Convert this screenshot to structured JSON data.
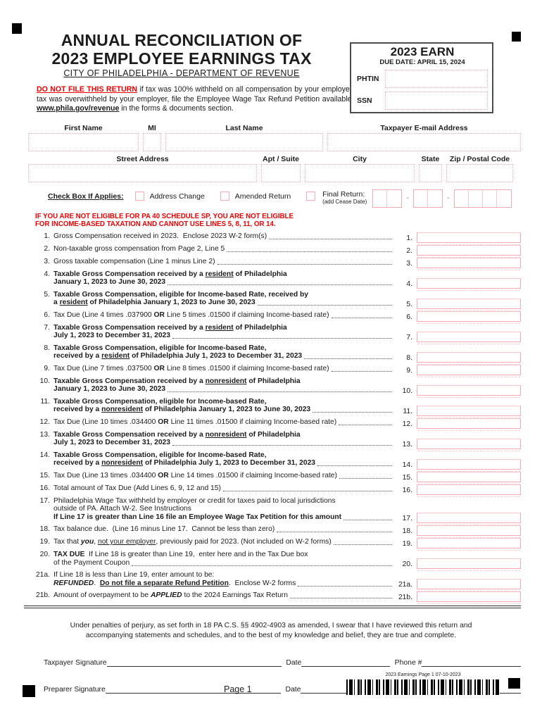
{
  "colors": {
    "field_pink": "#f5a9b4",
    "warning_red": "#ee0000"
  },
  "header": {
    "title_line1": "ANNUAL RECONCILIATION OF",
    "title_line2": "2023 EMPLOYEE EARNINGS TAX",
    "subtitle": "CITY OF PHILADELPHIA - DEPARTMENT OF REVENUE",
    "warning_bold": "DO NOT FILE THIS RETURN",
    "warning_mid": " if tax was 100% withheld on all compensation by your employer. If tax was overwithheld by your employer, file the Employee Wage Tax Refund Petition available at ",
    "warning_link": "www.phila.gov/revenue",
    "warning_end": " in the forms & documents section."
  },
  "earn_box": {
    "title": "2023 EARN",
    "due": "DUE DATE:  APRIL 15, 2024",
    "phtin_label": "PHTIN",
    "ssn_label": "SSN"
  },
  "identity": {
    "first_name": "First Name",
    "mi": "MI",
    "last_name": "Last Name",
    "email": "Taxpayer E-mail Address",
    "street": "Street Address",
    "apt": "Apt / Suite",
    "city": "City",
    "state": "State",
    "zip": "Zip / Postal Code"
  },
  "checkbox_row": {
    "label": "Check Box If Applies:",
    "address_change": "Address Change",
    "amended_return": "Amended Return",
    "final_return": "Final Return:",
    "add_cease_date": "(add Cease Date)",
    "dash": "-"
  },
  "eligibility_warning": {
    "line1": "IF YOU ARE NOT ELIGIBLE FOR PA 40 SCHEDULE SP, YOU ARE NOT ELIGIBLE",
    "line2": "FOR INCOME-BASED TAXATION AND CANNOT USE LINES 5, 8, 11, OR 14."
  },
  "lines": [
    {
      "n": "1.",
      "rows": [
        [
          {
            "t": "Gross Compensation received in 2023.  Enclose 2023 W-2 form(s)"
          }
        ]
      ]
    },
    {
      "n": "2.",
      "rows": [
        [
          {
            "t": "Non-taxable gross compensation from Page 2, Line 5"
          }
        ]
      ]
    },
    {
      "n": "3.",
      "rows": [
        [
          {
            "t": "Gross taxable compensation (Line 1 minus Line 2)"
          }
        ]
      ]
    },
    {
      "n": "4.",
      "rows": [
        [
          {
            "t": "Taxable Gross Compensation received by a ",
            "b": 1
          },
          {
            "t": "resident",
            "b": 1,
            "u": 1
          },
          {
            "t": " of Philadelphia",
            "b": 1
          }
        ],
        [
          {
            "t": "January 1, 2023 to June 30, 2023",
            "b": 1
          }
        ]
      ]
    },
    {
      "n": "5.",
      "rows": [
        [
          {
            "t": "Taxable Gross Compensation, eligible for Income-based Rate, received by",
            "b": 1
          }
        ],
        [
          {
            "t": "a ",
            "b": 1
          },
          {
            "t": "resident",
            "b": 1,
            "u": 1
          },
          {
            "t": " of Philadelphia January 1, 2023 to June 30, 2023",
            "b": 1
          }
        ]
      ]
    },
    {
      "n": "6.",
      "rows": [
        [
          {
            "t": "Tax Due (Line 4 times .037900 "
          },
          {
            "t": "OR",
            "b": 1
          },
          {
            "t": " Line 5 times .01500 if claiming Income-based rate)"
          }
        ]
      ]
    },
    {
      "n": "7.",
      "rows": [
        [
          {
            "t": "Taxable Gross Compensation received by a ",
            "b": 1
          },
          {
            "t": "resident",
            "b": 1,
            "u": 1
          },
          {
            "t": " of Philadelphia",
            "b": 1
          }
        ],
        [
          {
            "t": "July 1, 2023 to December 31, 2023",
            "b": 1
          }
        ]
      ]
    },
    {
      "n": "8.",
      "rows": [
        [
          {
            "t": "Taxable Gross Compensation, eligible for Income-based Rate,",
            "b": 1
          }
        ],
        [
          {
            "t": "received by a ",
            "b": 1
          },
          {
            "t": "resident",
            "b": 1,
            "u": 1
          },
          {
            "t": " of Philadelphia July 1, 2023 to December 31, 2023",
            "b": 1
          }
        ]
      ]
    },
    {
      "n": "9.",
      "rows": [
        [
          {
            "t": "Tax Due (Line 7 times .037500 "
          },
          {
            "t": "OR",
            "b": 1
          },
          {
            "t": " Line 8 times .01500 if claiming Income-based rate)"
          }
        ]
      ]
    },
    {
      "n": "10.",
      "rows": [
        [
          {
            "t": "Taxable Gross Compensation received by a ",
            "b": 1
          },
          {
            "t": "nonresident",
            "b": 1,
            "u": 1
          },
          {
            "t": " of Philadelphia",
            "b": 1
          }
        ],
        [
          {
            "t": "January 1, 2023 to June 30, 2023",
            "b": 1
          }
        ]
      ]
    },
    {
      "n": "11.",
      "rows": [
        [
          {
            "t": "Taxable Gross Compensation, eligible for Income-based Rate,",
            "b": 1
          }
        ],
        [
          {
            "t": "received by a ",
            "b": 1
          },
          {
            "t": "nonresident",
            "b": 1,
            "u": 1
          },
          {
            "t": " of Philadelphia January 1, 2023 to June 30, 2023",
            "b": 1
          }
        ]
      ]
    },
    {
      "n": "12.",
      "rows": [
        [
          {
            "t": "Tax Due (Line 10 times .034400 "
          },
          {
            "t": "OR",
            "b": 1
          },
          {
            "t": " Line 11 times .01500 if claiming Income-based rate)"
          }
        ]
      ]
    },
    {
      "n": "13.",
      "rows": [
        [
          {
            "t": "Taxable Gross Compensation received by a ",
            "b": 1
          },
          {
            "t": "nonresident",
            "b": 1,
            "u": 1
          },
          {
            "t": " of Philadelphia",
            "b": 1
          }
        ],
        [
          {
            "t": "July 1, 2023 to December 31, 2023",
            "b": 1
          }
        ]
      ]
    },
    {
      "n": "14.",
      "rows": [
        [
          {
            "t": "Taxable Gross Compensation, eligible for Income-based Rate,",
            "b": 1
          }
        ],
        [
          {
            "t": "received by a ",
            "b": 1
          },
          {
            "t": "nonresident",
            "b": 1,
            "u": 1
          },
          {
            "t": " of Philadelphia July 1, 2023 to December 31, 2023",
            "b": 1
          }
        ]
      ]
    },
    {
      "n": "15.",
      "rows": [
        [
          {
            "t": "Tax Due (Line 13 times .034400 "
          },
          {
            "t": "OR",
            "b": 1
          },
          {
            "t": " Line 14 times .01500 if claiming Income-based rate)"
          }
        ]
      ]
    },
    {
      "n": "16.",
      "rows": [
        [
          {
            "t": "Total amount of Tax Due (Add Lines 6, 9, 12 and 15)"
          }
        ]
      ]
    },
    {
      "n": "17.",
      "rows": [
        [
          {
            "t": "Philadelphia Wage Tax withheld by employer or credit for taxes paid to local jurisdictions"
          }
        ],
        [
          {
            "t": "outside of PA. Attach W-2. See Instructions"
          }
        ],
        [
          {
            "t": "If Line 17 is greater than Line 16 file an Employee Wage Tax Petition for this amount",
            "b": 1
          }
        ]
      ]
    },
    {
      "n": "18.",
      "rows": [
        [
          {
            "t": "Tax balance due.  (Line 16 minus Line 17.  Cannot be less than zero)"
          }
        ]
      ]
    },
    {
      "n": "19.",
      "rows": [
        [
          {
            "t": "Tax that "
          },
          {
            "t": "you",
            "b": 1,
            "i": 1
          },
          {
            "t": ", "
          },
          {
            "t": "not your employer",
            "u": 1
          },
          {
            "t": ", previously paid for 2023. (Not included on W-2 forms)"
          }
        ]
      ]
    },
    {
      "n": "20.",
      "rows": [
        [
          {
            "t": "TAX DUE",
            "b": 1
          },
          {
            "t": "  If Line 18 is greater than Line 19,  enter here and in the Tax Due box"
          }
        ],
        [
          {
            "t": "of the Payment Coupon"
          }
        ]
      ]
    },
    {
      "n": "21a.",
      "rows": [
        [
          {
            "t": "If Line 18 is less than Line 19, enter amount to be:"
          }
        ],
        [
          {
            "t": "REFUNDED",
            "b": 1,
            "i": 1
          },
          {
            "t": ".  "
          },
          {
            "t": "Do not file a separate Refund Petition",
            "b": 1,
            "u": 1
          },
          {
            "t": ".  Enclose W-2 forms"
          }
        ]
      ]
    },
    {
      "n": "21b.",
      "rows": [
        [
          {
            "t": "Amount of overpayment to be "
          },
          {
            "t": "APPLIED",
            "b": 1,
            "i": 1
          },
          {
            "t": " to the 2024 Earnings Tax Return"
          }
        ]
      ]
    }
  ],
  "declaration": "Under penalties of perjury, as set forth in 18 PA C.S. §§ 4902-4903 as amended, I swear that I have reviewed this return and accompanying statements and schedules, and to the best of my knowledge and belief, they are true and complete.",
  "signature_section": {
    "taxpayer_label": "Taxpayer Signature",
    "preparer_label": "Preparer Signature",
    "date_label": "Date",
    "phone_label": "Phone #"
  },
  "footer": {
    "page_label": "Page 1",
    "barcode_caption": "2023 Earnings Page 1 07-10-2023"
  }
}
